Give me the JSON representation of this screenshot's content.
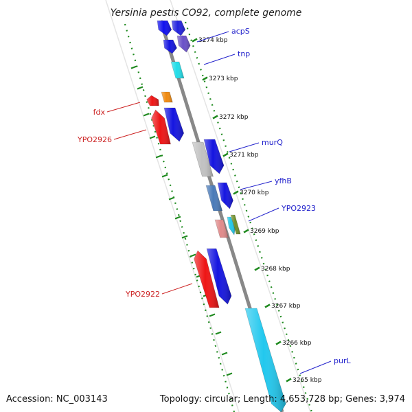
{
  "title": "Yersinia pestis CO92, complete genome",
  "footer": {
    "accession": "Accession: NC_003143",
    "topology": "Topology: circular; Length: 4,653,728 bp; Genes: 3,974"
  },
  "colors": {
    "background": "#ffffff",
    "track_border": "#e4e4e4",
    "backbone": "#888888",
    "tick": "#1f8a1f",
    "label_forward": "#2222cc",
    "label_reverse": "#cc2222"
  },
  "ticks": [
    {
      "label": "3274 kbp"
    },
    {
      "label": "3273 kbp"
    },
    {
      "label": "3272 kbp"
    },
    {
      "label": "3271 kbp"
    },
    {
      "label": "3270 kbp"
    },
    {
      "label": "3269 kbp"
    },
    {
      "label": "3268 kbp"
    },
    {
      "label": "3267 kbp"
    },
    {
      "label": "3266 kbp"
    },
    {
      "label": "3265 kbp"
    }
  ],
  "gene_labels": [
    {
      "text": "acpS",
      "strand": "forward"
    },
    {
      "text": "tnp",
      "strand": "forward"
    },
    {
      "text": "fdx",
      "strand": "reverse"
    },
    {
      "text": "YPO2926",
      "strand": "reverse"
    },
    {
      "text": "murQ",
      "strand": "forward"
    },
    {
      "text": "yfhB",
      "strand": "forward"
    },
    {
      "text": "YPO2923",
      "strand": "forward"
    },
    {
      "text": "YPO2922",
      "strand": "reverse"
    },
    {
      "text": "purL",
      "strand": "forward"
    }
  ],
  "genes": [
    {
      "strand": "forward",
      "color": "#1010ee",
      "direction": "down"
    },
    {
      "strand": "forward",
      "color": "#2222dd",
      "direction": "down"
    },
    {
      "strand": "forward",
      "color": "#6a50c8",
      "direction": "down"
    },
    {
      "strand": "forward",
      "color": "#1515e0",
      "direction": "down"
    },
    {
      "strand": "reverse",
      "color": "#22dde8",
      "direction": "none"
    },
    {
      "strand": "reverse",
      "color": "#ee1515",
      "direction": "up"
    },
    {
      "strand": "reverse",
      "color": "#f08a10",
      "direction": "none"
    },
    {
      "strand": "reverse",
      "color": "#ee1515",
      "direction": "up"
    },
    {
      "strand": "forward",
      "color": "#1515e0",
      "direction": "down"
    },
    {
      "strand": "forward",
      "color": "#c2c2c2",
      "direction": "none"
    },
    {
      "strand": "forward",
      "color": "#1515e0",
      "direction": "down"
    },
    {
      "strand": "forward",
      "color": "#4a7ab8",
      "direction": "none"
    },
    {
      "strand": "forward",
      "color": "#1515e0",
      "direction": "down"
    },
    {
      "strand": "forward",
      "color": "#e08a8a",
      "direction": "none"
    },
    {
      "strand": "forward",
      "color": "#22c8e8",
      "direction": "down"
    },
    {
      "strand": "reverse",
      "color": "#6e8e2a",
      "direction": "none"
    },
    {
      "strand": "reverse",
      "color": "#ee1515",
      "direction": "up"
    },
    {
      "strand": "forward",
      "color": "#1515e0",
      "direction": "down"
    },
    {
      "strand": "forward",
      "color": "#22c8ee",
      "direction": "down"
    }
  ]
}
